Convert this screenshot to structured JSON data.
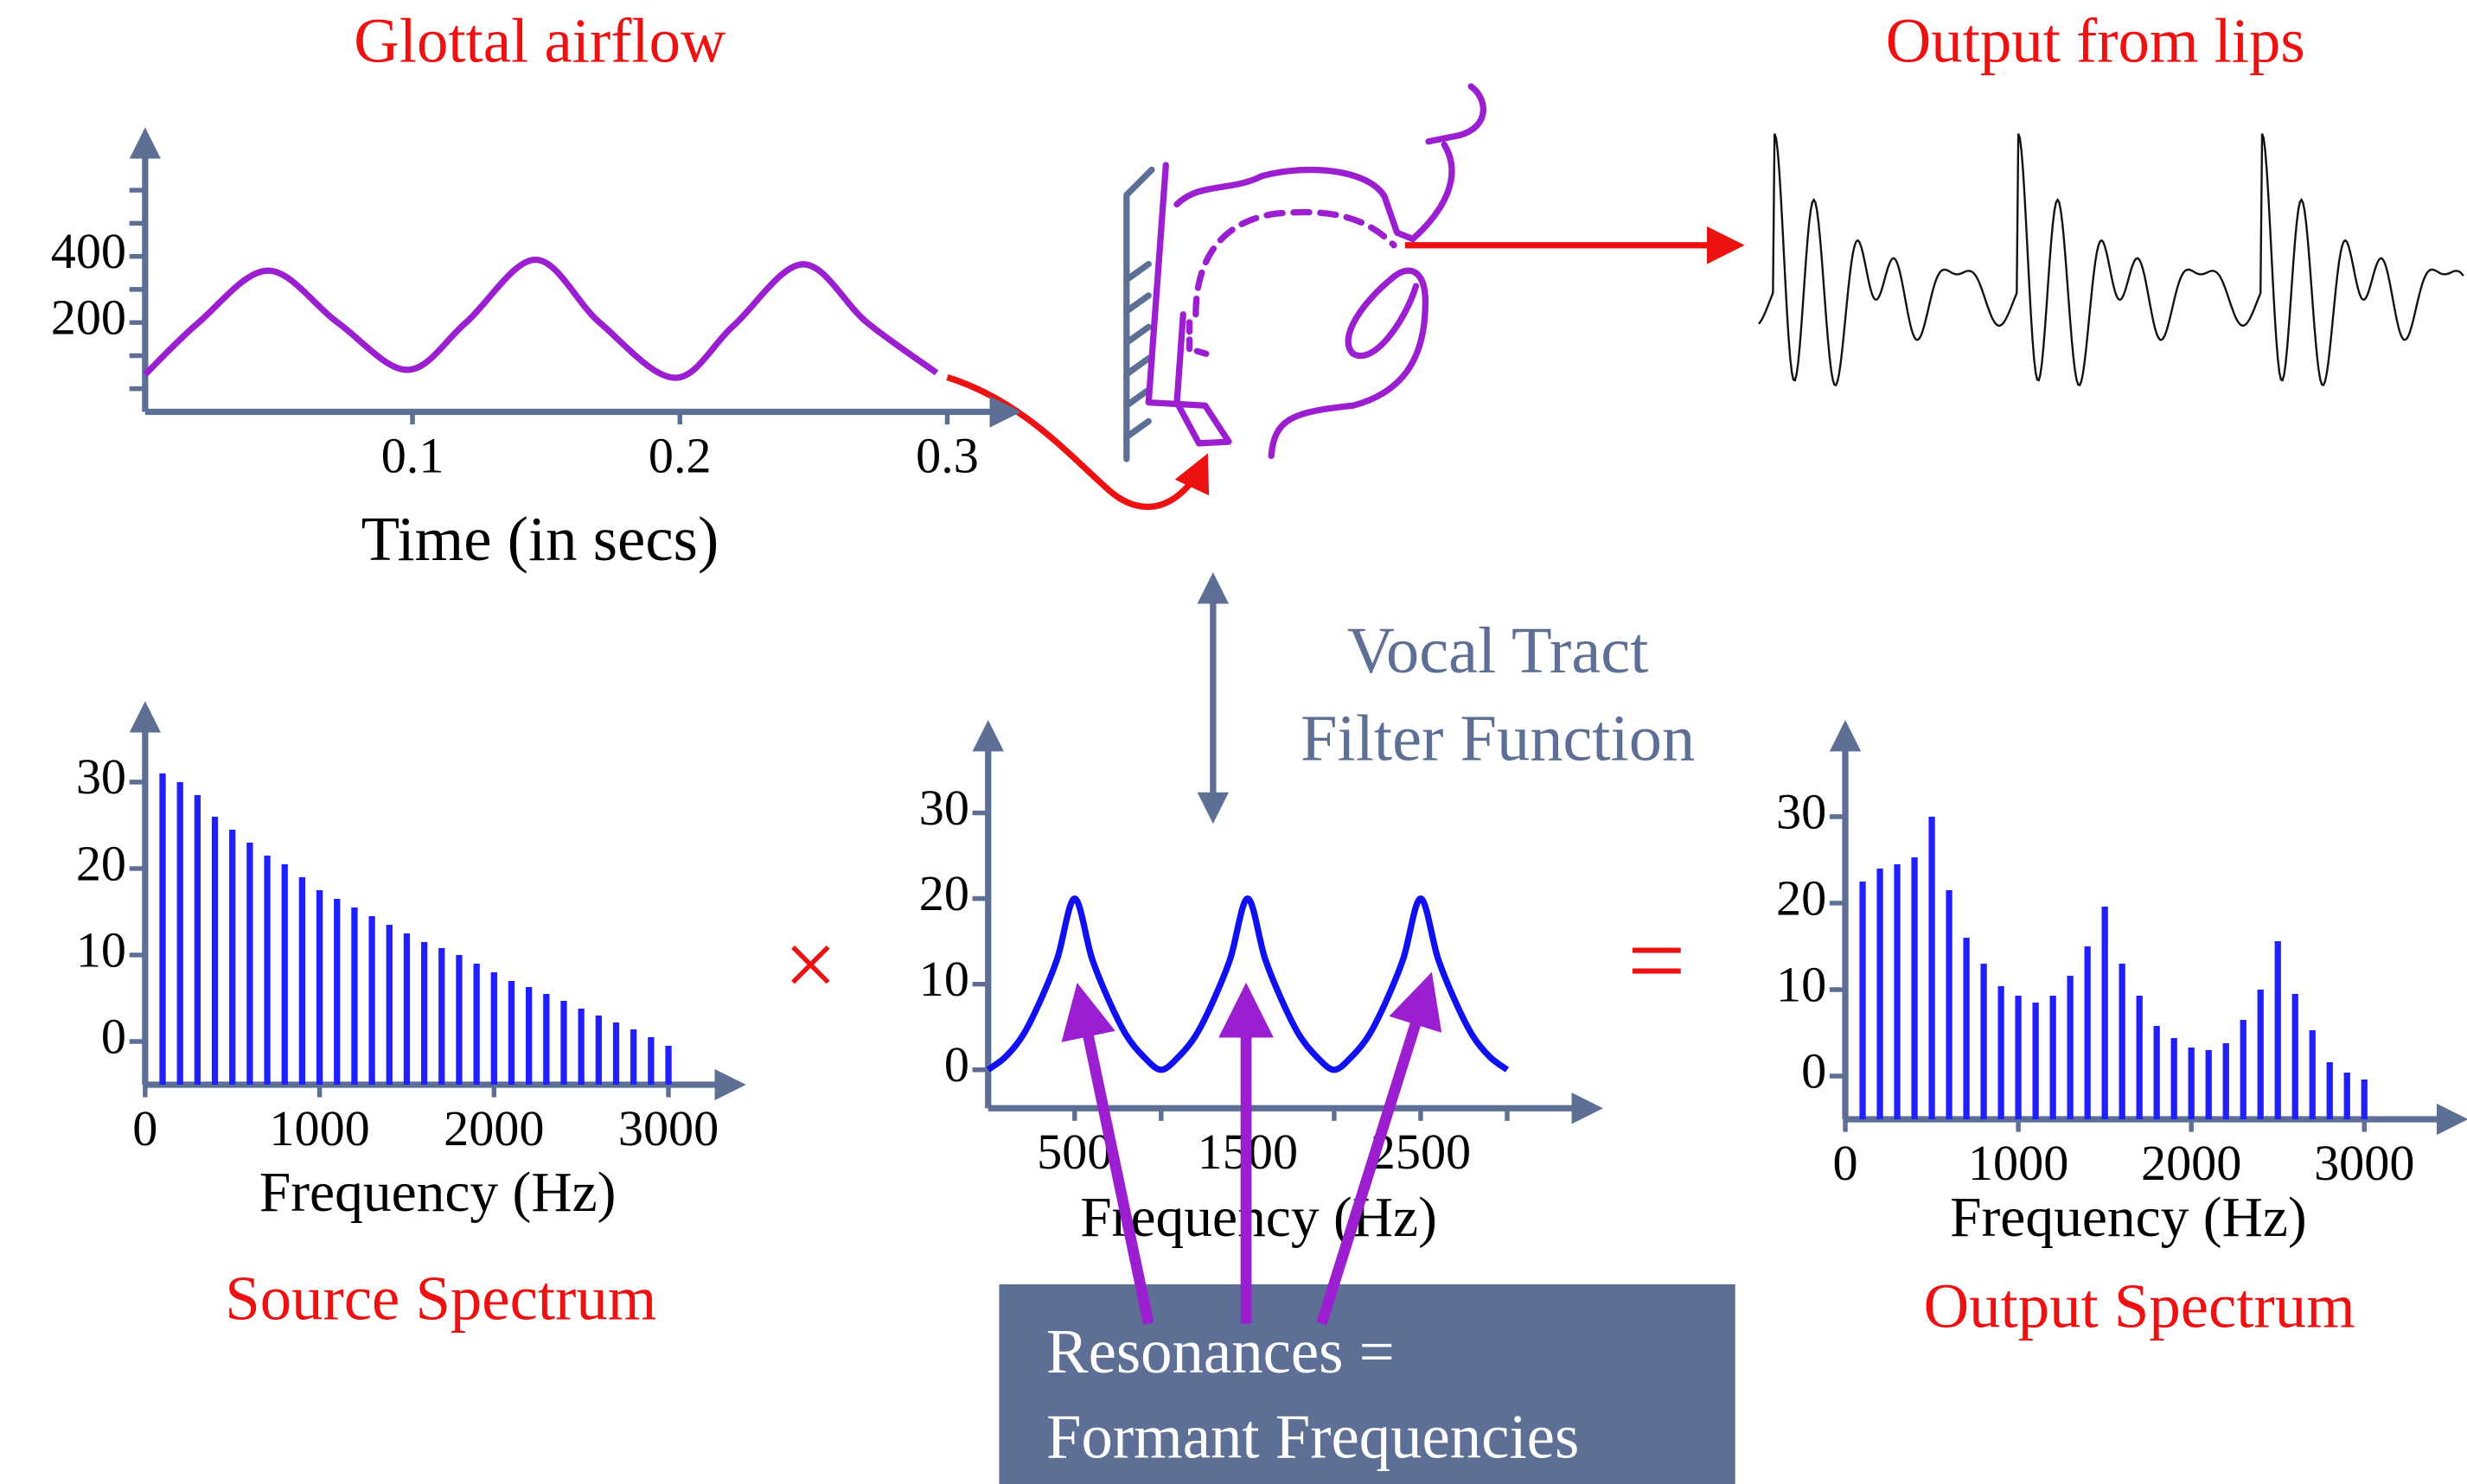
{
  "labels": {
    "output_from_lips": "Output from lips",
    "vocal_tract": [
      "Vocal Tract",
      "Filter Function"
    ],
    "times": "×",
    "equals": "=",
    "resonances": [
      "Resonances =",
      "Formant Frequencies"
    ]
  },
  "chart_data": [
    {
      "type": "line",
      "title": "Glottal airflow",
      "xlabel": "Time (in secs)",
      "x": [
        0,
        0.02,
        0.046,
        0.072,
        0.098,
        0.12,
        0.146,
        0.17,
        0.198,
        0.22,
        0.246,
        0.27,
        0.296
      ],
      "y": [
        43,
        200,
        357,
        200,
        57,
        200,
        390,
        200,
        33,
        190,
        376,
        200,
        48
      ],
      "color": "#9b1fd1",
      "xlim": [
        0,
        0.32
      ],
      "ylim": [
        -70,
        600
      ],
      "xticks": [
        0.1,
        0.2,
        0.3
      ],
      "yticks": [
        200,
        400
      ],
      "minor_yticks": [
        0,
        100,
        300,
        500,
        600
      ]
    },
    {
      "type": "bar",
      "title": "Source Spectrum",
      "xlabel": "Frequency (Hz)",
      "x": [
        100,
        200,
        300,
        400,
        500,
        600,
        700,
        800,
        900,
        1000,
        1100,
        1200,
        1300,
        1400,
        1500,
        1600,
        1700,
        1800,
        1900,
        2000,
        2100,
        2200,
        2300,
        2400,
        2500,
        2600,
        2700,
        2800,
        2900,
        3000
      ],
      "values": [
        31,
        30,
        28.5,
        26,
        24.5,
        23,
        21.5,
        20.5,
        19,
        17.5,
        16.5,
        15.5,
        14.5,
        13.5,
        12.5,
        11.5,
        10.8,
        10,
        9,
        8,
        7,
        6.3,
        5.5,
        4.7,
        3.8,
        3,
        2.2,
        1.4,
        0.5,
        -0.5
      ],
      "color": "#1f1fff",
      "xlim": [
        0,
        3300
      ],
      "ylim": [
        -5,
        38
      ],
      "xticks": [
        0,
        1000,
        2000,
        3000
      ],
      "yticks": [
        0,
        10,
        20,
        30
      ]
    },
    {
      "type": "line",
      "xlabel": "Frequency (Hz)",
      "x": [
        0,
        100,
        200,
        300,
        400,
        500,
        600,
        700,
        800,
        900,
        1000,
        1100,
        1200,
        1300,
        1400,
        1500,
        1600,
        1700,
        1800,
        1900,
        2000,
        2100,
        2200,
        2300,
        2400,
        2500,
        2600,
        2700,
        2800,
        2900,
        3000
      ],
      "y": [
        0,
        1.5,
        4,
        8,
        13,
        20,
        13,
        8,
        4,
        1.5,
        0,
        1.5,
        4,
        8,
        13,
        20,
        13,
        8,
        4,
        1.5,
        0,
        1.5,
        4,
        8,
        13,
        20,
        13,
        8,
        4,
        1.5,
        0
      ],
      "color": "#1010f0",
      "xlim": [
        0,
        3450
      ],
      "ylim": [
        -4.5,
        37
      ],
      "xticks": [
        500,
        1500,
        2500
      ],
      "minor_xticks": [
        1000,
        2000,
        3000
      ],
      "yticks": [
        0,
        10,
        20,
        30
      ]
    },
    {
      "type": "bar",
      "title": "Output Spectrum",
      "xlabel": "Frequency (Hz)",
      "x": [
        100,
        200,
        300,
        400,
        500,
        600,
        700,
        800,
        900,
        1000,
        1100,
        1200,
        1300,
        1400,
        1500,
        1600,
        1700,
        1800,
        1900,
        2000,
        2100,
        2200,
        2300,
        2400,
        2500,
        2600,
        2700,
        2800,
        2900,
        3000
      ],
      "values": [
        22.5,
        24,
        24.5,
        25.3,
        30,
        21.5,
        16,
        13,
        10.4,
        9.3,
        8.5,
        9.3,
        11.6,
        15,
        19.6,
        13,
        9.3,
        5.8,
        4.4,
        3.3,
        3,
        3.8,
        6.5,
        10,
        15.6,
        9.5,
        5.3,
        1.6,
        0.4,
        -0.4
      ],
      "color": "#1f1fff",
      "xlim": [
        0,
        3500
      ],
      "ylim": [
        -5,
        37
      ],
      "xticks": [
        0,
        1000,
        2000,
        3000
      ],
      "yticks": [
        0,
        10,
        20,
        30
      ]
    }
  ]
}
